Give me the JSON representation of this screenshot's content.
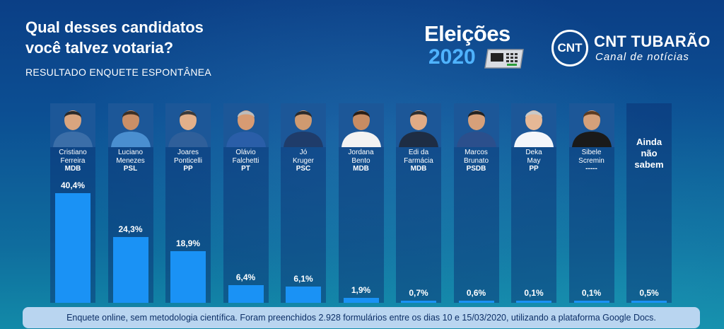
{
  "header": {
    "title_line1": "Qual desses candidatos",
    "title_line2": "você talvez votaria?",
    "subtitle": "RESULTADO ENQUETE ESPONTÂNEA"
  },
  "logos": {
    "eleicoes_word": "Eleições",
    "eleicoes_year": "2020",
    "cnt_badge": "CNT",
    "cnt_name": "CNT TUBARÃO",
    "cnt_tagline": "Canal de notícias"
  },
  "chart_data": {
    "type": "bar",
    "title": "Qual desses candidatos você talvez votaria?",
    "subtitle": "RESULTADO ENQUETE ESPONTÂNEA",
    "categories": [
      "Cristiano Ferreira",
      "Luciano Menezes",
      "Joares Ponticelli",
      "Olávio Falchetti",
      "Jó Kruger",
      "Jordana Bento",
      "Edi da Farmácia",
      "Marcos Brunato",
      "Deka May",
      "Sibele Scremin",
      "Ainda não sabem"
    ],
    "values": [
      40.4,
      24.3,
      18.9,
      6.4,
      6.1,
      1.9,
      0.7,
      0.6,
      0.1,
      0.1,
      0.5
    ],
    "value_labels": [
      "40,4%",
      "24,3%",
      "18,9%",
      "6,4%",
      "6,1%",
      "1,9%",
      "0,7%",
      "0,6%",
      "0,1%",
      "0,1%",
      "0,5%"
    ],
    "ylim": [
      0,
      40.4
    ],
    "grid": false,
    "bar_color": "#1a92f5"
  },
  "candidates": [
    {
      "first": "Cristiano",
      "last": "Ferreira",
      "party": "MDB"
    },
    {
      "first": "Luciano",
      "last": "Menezes",
      "party": "PSL"
    },
    {
      "first": "Joares",
      "last": "Ponticelli",
      "party": "PP"
    },
    {
      "first": "Olávio",
      "last": "Falchetti",
      "party": "PT"
    },
    {
      "first": "Jó",
      "last": "Kruger",
      "party": "PSC"
    },
    {
      "first": "Jordana",
      "last": "Bento",
      "party": "MDB"
    },
    {
      "first": "Edi da",
      "last": "Farmácia",
      "party": "MDB"
    },
    {
      "first": "Marcos",
      "last": "Brunato",
      "party": "PSDB"
    },
    {
      "first": "Deka",
      "last": "May",
      "party": "PP"
    },
    {
      "first": "Sibele",
      "last": "Scremin",
      "party": "-----"
    }
  ],
  "undecided": {
    "line1": "Ainda",
    "line2": "não",
    "line3": "sabem"
  },
  "footer": {
    "text": "Enquete online, sem metodologia científica. Foram preenchidos 2.928 formulários entre os dias 10 e 15/03/2020, utilizando a plataforma Google Docs."
  }
}
